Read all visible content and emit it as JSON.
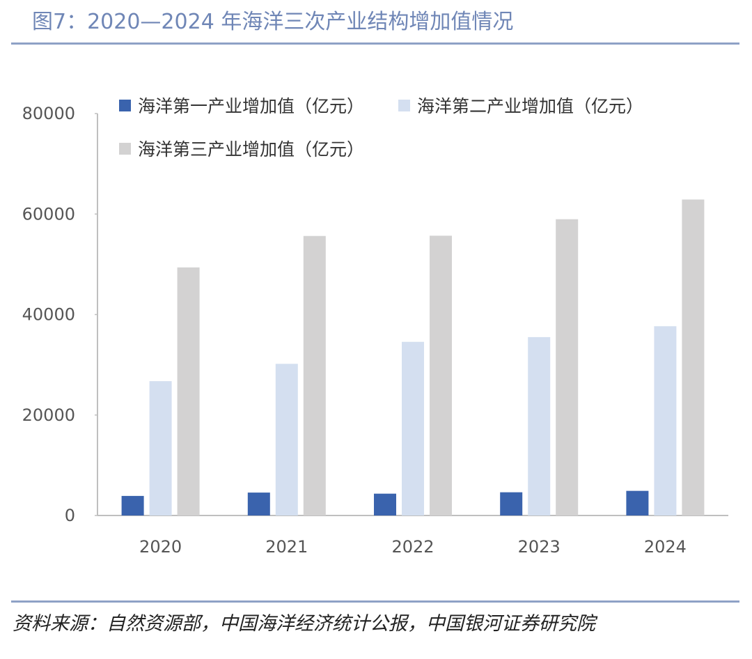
{
  "header": {
    "title": "图7：2020—2024 年海洋三次产业结构增加值情况"
  },
  "footer": {
    "source": "资料来源：自然资源部，中国海洋经济统计公报，中国银河证券研究院"
  },
  "colors": {
    "series1": "#3a63ad",
    "series2": "#d4dff0",
    "series3": "#d3d2d2",
    "axis": "#bfbfbf",
    "rule": "#8ea1c6",
    "title": "#6f86b6",
    "text": "#555555"
  },
  "chart_data": {
    "type": "bar",
    "categories": [
      "2020",
      "2021",
      "2022",
      "2023",
      "2024"
    ],
    "series": [
      {
        "name": "海洋第一产业增加值（亿元）",
        "values": [
          3896,
          4562,
          4345,
          4622,
          4903
        ]
      },
      {
        "name": "海洋第二产业增加值（亿元）",
        "values": [
          26741,
          30188,
          34565,
          35506,
          37676
        ]
      },
      {
        "name": "海洋第三产业增加值（亿元）",
        "values": [
          49373,
          55635,
          55688,
          58968,
          62891
        ]
      }
    ],
    "yticks": [
      0,
      20000,
      40000,
      60000,
      80000
    ],
    "ylim": [
      0,
      80000
    ],
    "legend_position": "top",
    "grid": false
  }
}
